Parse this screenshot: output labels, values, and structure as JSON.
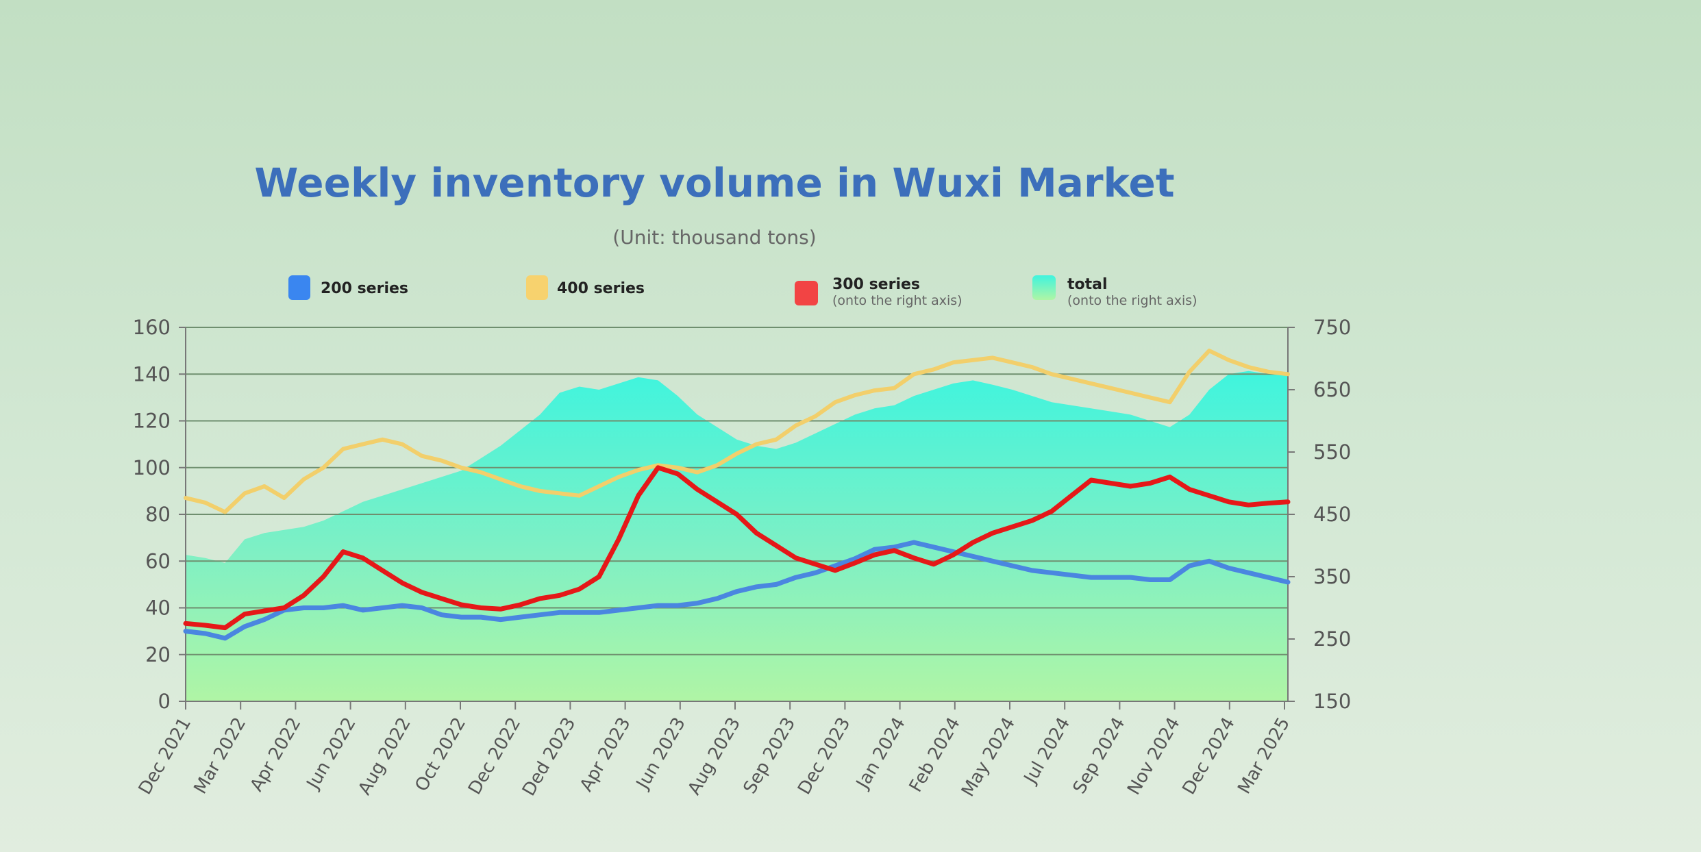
{
  "chart_data": {
    "type": "line",
    "title": "Weekly inventory volume in Wuxi Market",
    "subtitle": "(Unit: thousand tons)",
    "ylim": [
      0,
      160
    ],
    "yticks": [
      0,
      20,
      40,
      60,
      80,
      100,
      120,
      140,
      160
    ],
    "y2lim": [
      150,
      750
    ],
    "y2ticks": [
      150,
      250,
      350,
      450,
      550,
      650,
      750
    ],
    "grid": true,
    "legend_position": "top",
    "x_labels": [
      "Dec 2021",
      "Mar 2022",
      "Apr 2022",
      "Jun 2022",
      "Aug 2022",
      "Oct 2022",
      "Dec 2022",
      "Ded 2023",
      "Apr 2023",
      "Jun 2023",
      "Aug 2023",
      "Sep 2023",
      "Dec 2023",
      "Jan 2024",
      "Feb 2024",
      "May 2024",
      "Jul 2024",
      "Sep 2024",
      "Nov 2024",
      "Dec 2024",
      "Mar 2025"
    ],
    "series": [
      {
        "name": "200 series",
        "axis": "left",
        "kind": "line",
        "color": "#4a86e0",
        "points": [
          [
            0,
            30
          ],
          [
            0.5,
            29
          ],
          [
            1,
            27
          ],
          [
            1.5,
            32
          ],
          [
            2,
            35
          ],
          [
            2.5,
            39
          ],
          [
            3,
            40
          ],
          [
            3.5,
            40
          ],
          [
            4,
            41
          ],
          [
            4.5,
            39
          ],
          [
            5,
            40
          ],
          [
            5.5,
            41
          ],
          [
            6,
            40
          ],
          [
            6.5,
            37
          ],
          [
            7,
            36
          ],
          [
            7.5,
            36
          ],
          [
            8,
            35
          ],
          [
            8.5,
            36
          ],
          [
            9,
            37
          ],
          [
            9.5,
            38
          ],
          [
            10,
            38
          ],
          [
            10.5,
            38
          ],
          [
            11,
            39
          ],
          [
            11.5,
            40
          ],
          [
            12,
            41
          ],
          [
            12.5,
            41
          ],
          [
            13,
            42
          ],
          [
            13.5,
            44
          ],
          [
            14,
            47
          ],
          [
            14.5,
            49
          ],
          [
            15,
            50
          ],
          [
            15.5,
            53
          ],
          [
            16,
            55
          ],
          [
            16.5,
            58
          ],
          [
            17,
            61
          ],
          [
            17.5,
            65
          ],
          [
            18,
            66
          ],
          [
            18.5,
            68
          ],
          [
            19,
            66
          ],
          [
            19.5,
            64
          ],
          [
            20,
            62
          ],
          [
            20.5,
            60
          ],
          [
            21,
            58
          ],
          [
            21.5,
            56
          ],
          [
            22,
            55
          ],
          [
            22.5,
            54
          ],
          [
            23,
            53
          ],
          [
            23.5,
            53
          ],
          [
            24,
            53
          ],
          [
            24.5,
            52
          ],
          [
            25,
            52
          ],
          [
            25.5,
            58
          ],
          [
            26,
            60
          ],
          [
            26.5,
            57
          ],
          [
            27,
            55
          ],
          [
            27.5,
            53
          ],
          [
            28,
            51
          ]
        ]
      },
      {
        "name": "400 series",
        "axis": "left",
        "kind": "line",
        "color": "#f2cf6b",
        "points": [
          [
            0,
            87
          ],
          [
            0.5,
            85
          ],
          [
            1,
            81
          ],
          [
            1.5,
            89
          ],
          [
            2,
            92
          ],
          [
            2.5,
            87
          ],
          [
            3,
            95
          ],
          [
            3.5,
            100
          ],
          [
            4,
            108
          ],
          [
            4.5,
            110
          ],
          [
            5,
            112
          ],
          [
            5.5,
            110
          ],
          [
            6,
            105
          ],
          [
            6.5,
            103
          ],
          [
            7,
            100
          ],
          [
            7.5,
            98
          ],
          [
            8,
            95
          ],
          [
            8.5,
            92
          ],
          [
            9,
            90
          ],
          [
            9.5,
            89
          ],
          [
            10,
            88
          ],
          [
            10.5,
            92
          ],
          [
            11,
            96
          ],
          [
            11.5,
            99
          ],
          [
            12,
            101
          ],
          [
            12.5,
            100
          ],
          [
            13,
            98
          ],
          [
            13.5,
            101
          ],
          [
            14,
            106
          ],
          [
            14.5,
            110
          ],
          [
            15,
            112
          ],
          [
            15.5,
            118
          ],
          [
            16,
            122
          ],
          [
            16.5,
            128
          ],
          [
            17,
            131
          ],
          [
            17.5,
            133
          ],
          [
            18,
            134
          ],
          [
            18.5,
            140
          ],
          [
            19,
            142
          ],
          [
            19.5,
            145
          ],
          [
            20,
            146
          ],
          [
            20.5,
            147
          ],
          [
            21,
            145
          ],
          [
            21.5,
            143
          ],
          [
            22,
            140
          ],
          [
            22.5,
            138
          ],
          [
            23,
            136
          ],
          [
            23.5,
            134
          ],
          [
            24,
            132
          ],
          [
            24.5,
            130
          ],
          [
            25,
            128
          ],
          [
            25.5,
            141
          ],
          [
            26,
            150
          ],
          [
            26.5,
            146
          ],
          [
            27,
            143
          ],
          [
            27.5,
            141
          ],
          [
            28,
            140
          ]
        ]
      },
      {
        "name": "300 series",
        "sublabel": "(onto the right axis)",
        "axis": "right",
        "kind": "line",
        "color": "#e51818",
        "points": [
          [
            0,
            275
          ],
          [
            0.5,
            272
          ],
          [
            1,
            268
          ],
          [
            1.5,
            290
          ],
          [
            2,
            295
          ],
          [
            2.5,
            300
          ],
          [
            3,
            320
          ],
          [
            3.5,
            350
          ],
          [
            4,
            390
          ],
          [
            4.5,
            380
          ],
          [
            5,
            360
          ],
          [
            5.5,
            340
          ],
          [
            6,
            325
          ],
          [
            6.5,
            315
          ],
          [
            7,
            305
          ],
          [
            7.5,
            300
          ],
          [
            8,
            298
          ],
          [
            8.5,
            305
          ],
          [
            9,
            315
          ],
          [
            9.5,
            320
          ],
          [
            10,
            330
          ],
          [
            10.5,
            350
          ],
          [
            11,
            410
          ],
          [
            11.5,
            480
          ],
          [
            12,
            525
          ],
          [
            12.5,
            515
          ],
          [
            13,
            490
          ],
          [
            13.5,
            470
          ],
          [
            14,
            450
          ],
          [
            14.5,
            420
          ],
          [
            15,
            400
          ],
          [
            15.5,
            380
          ],
          [
            16,
            370
          ],
          [
            16.5,
            360
          ],
          [
            17,
            372
          ],
          [
            17.5,
            385
          ],
          [
            18,
            392
          ],
          [
            18.5,
            380
          ],
          [
            19,
            370
          ],
          [
            19.5,
            385
          ],
          [
            20,
            405
          ],
          [
            20.5,
            420
          ],
          [
            21,
            430
          ],
          [
            21.5,
            440
          ],
          [
            22,
            455
          ],
          [
            22.5,
            480
          ],
          [
            23,
            505
          ],
          [
            23.5,
            500
          ],
          [
            24,
            495
          ],
          [
            24.5,
            500
          ],
          [
            25,
            510
          ],
          [
            25.5,
            490
          ],
          [
            26,
            480
          ],
          [
            26.5,
            470
          ],
          [
            27,
            465
          ],
          [
            27.5,
            468
          ],
          [
            28,
            470
          ]
        ]
      },
      {
        "name": "total",
        "sublabel": "(onto the right axis)",
        "axis": "right",
        "kind": "area",
        "color": "#4ef5dc",
        "points": [
          [
            0,
            385
          ],
          [
            0.5,
            380
          ],
          [
            1,
            372
          ],
          [
            1.5,
            410
          ],
          [
            2,
            420
          ],
          [
            2.5,
            425
          ],
          [
            3,
            430
          ],
          [
            3.5,
            440
          ],
          [
            4,
            455
          ],
          [
            4.5,
            470
          ],
          [
            5,
            480
          ],
          [
            5.5,
            490
          ],
          [
            6,
            500
          ],
          [
            6.5,
            510
          ],
          [
            7,
            520
          ],
          [
            7.5,
            540
          ],
          [
            8,
            560
          ],
          [
            8.5,
            585
          ],
          [
            9,
            610
          ],
          [
            9.5,
            645
          ],
          [
            10,
            655
          ],
          [
            10.5,
            650
          ],
          [
            11,
            660
          ],
          [
            11.5,
            670
          ],
          [
            12,
            665
          ],
          [
            12.5,
            640
          ],
          [
            13,
            610
          ],
          [
            13.5,
            590
          ],
          [
            14,
            570
          ],
          [
            14.5,
            560
          ],
          [
            15,
            555
          ],
          [
            15.5,
            565
          ],
          [
            16,
            580
          ],
          [
            16.5,
            595
          ],
          [
            17,
            610
          ],
          [
            17.5,
            620
          ],
          [
            18,
            625
          ],
          [
            18.5,
            640
          ],
          [
            19,
            650
          ],
          [
            19.5,
            660
          ],
          [
            20,
            665
          ],
          [
            20.5,
            658
          ],
          [
            21,
            650
          ],
          [
            21.5,
            640
          ],
          [
            22,
            630
          ],
          [
            22.5,
            625
          ],
          [
            23,
            620
          ],
          [
            23.5,
            615
          ],
          [
            24,
            610
          ],
          [
            24.5,
            600
          ],
          [
            25,
            590
          ],
          [
            25.5,
            610
          ],
          [
            26,
            650
          ],
          [
            26.5,
            675
          ],
          [
            27,
            680
          ],
          [
            27.5,
            675
          ],
          [
            28,
            678
          ]
        ]
      }
    ]
  }
}
